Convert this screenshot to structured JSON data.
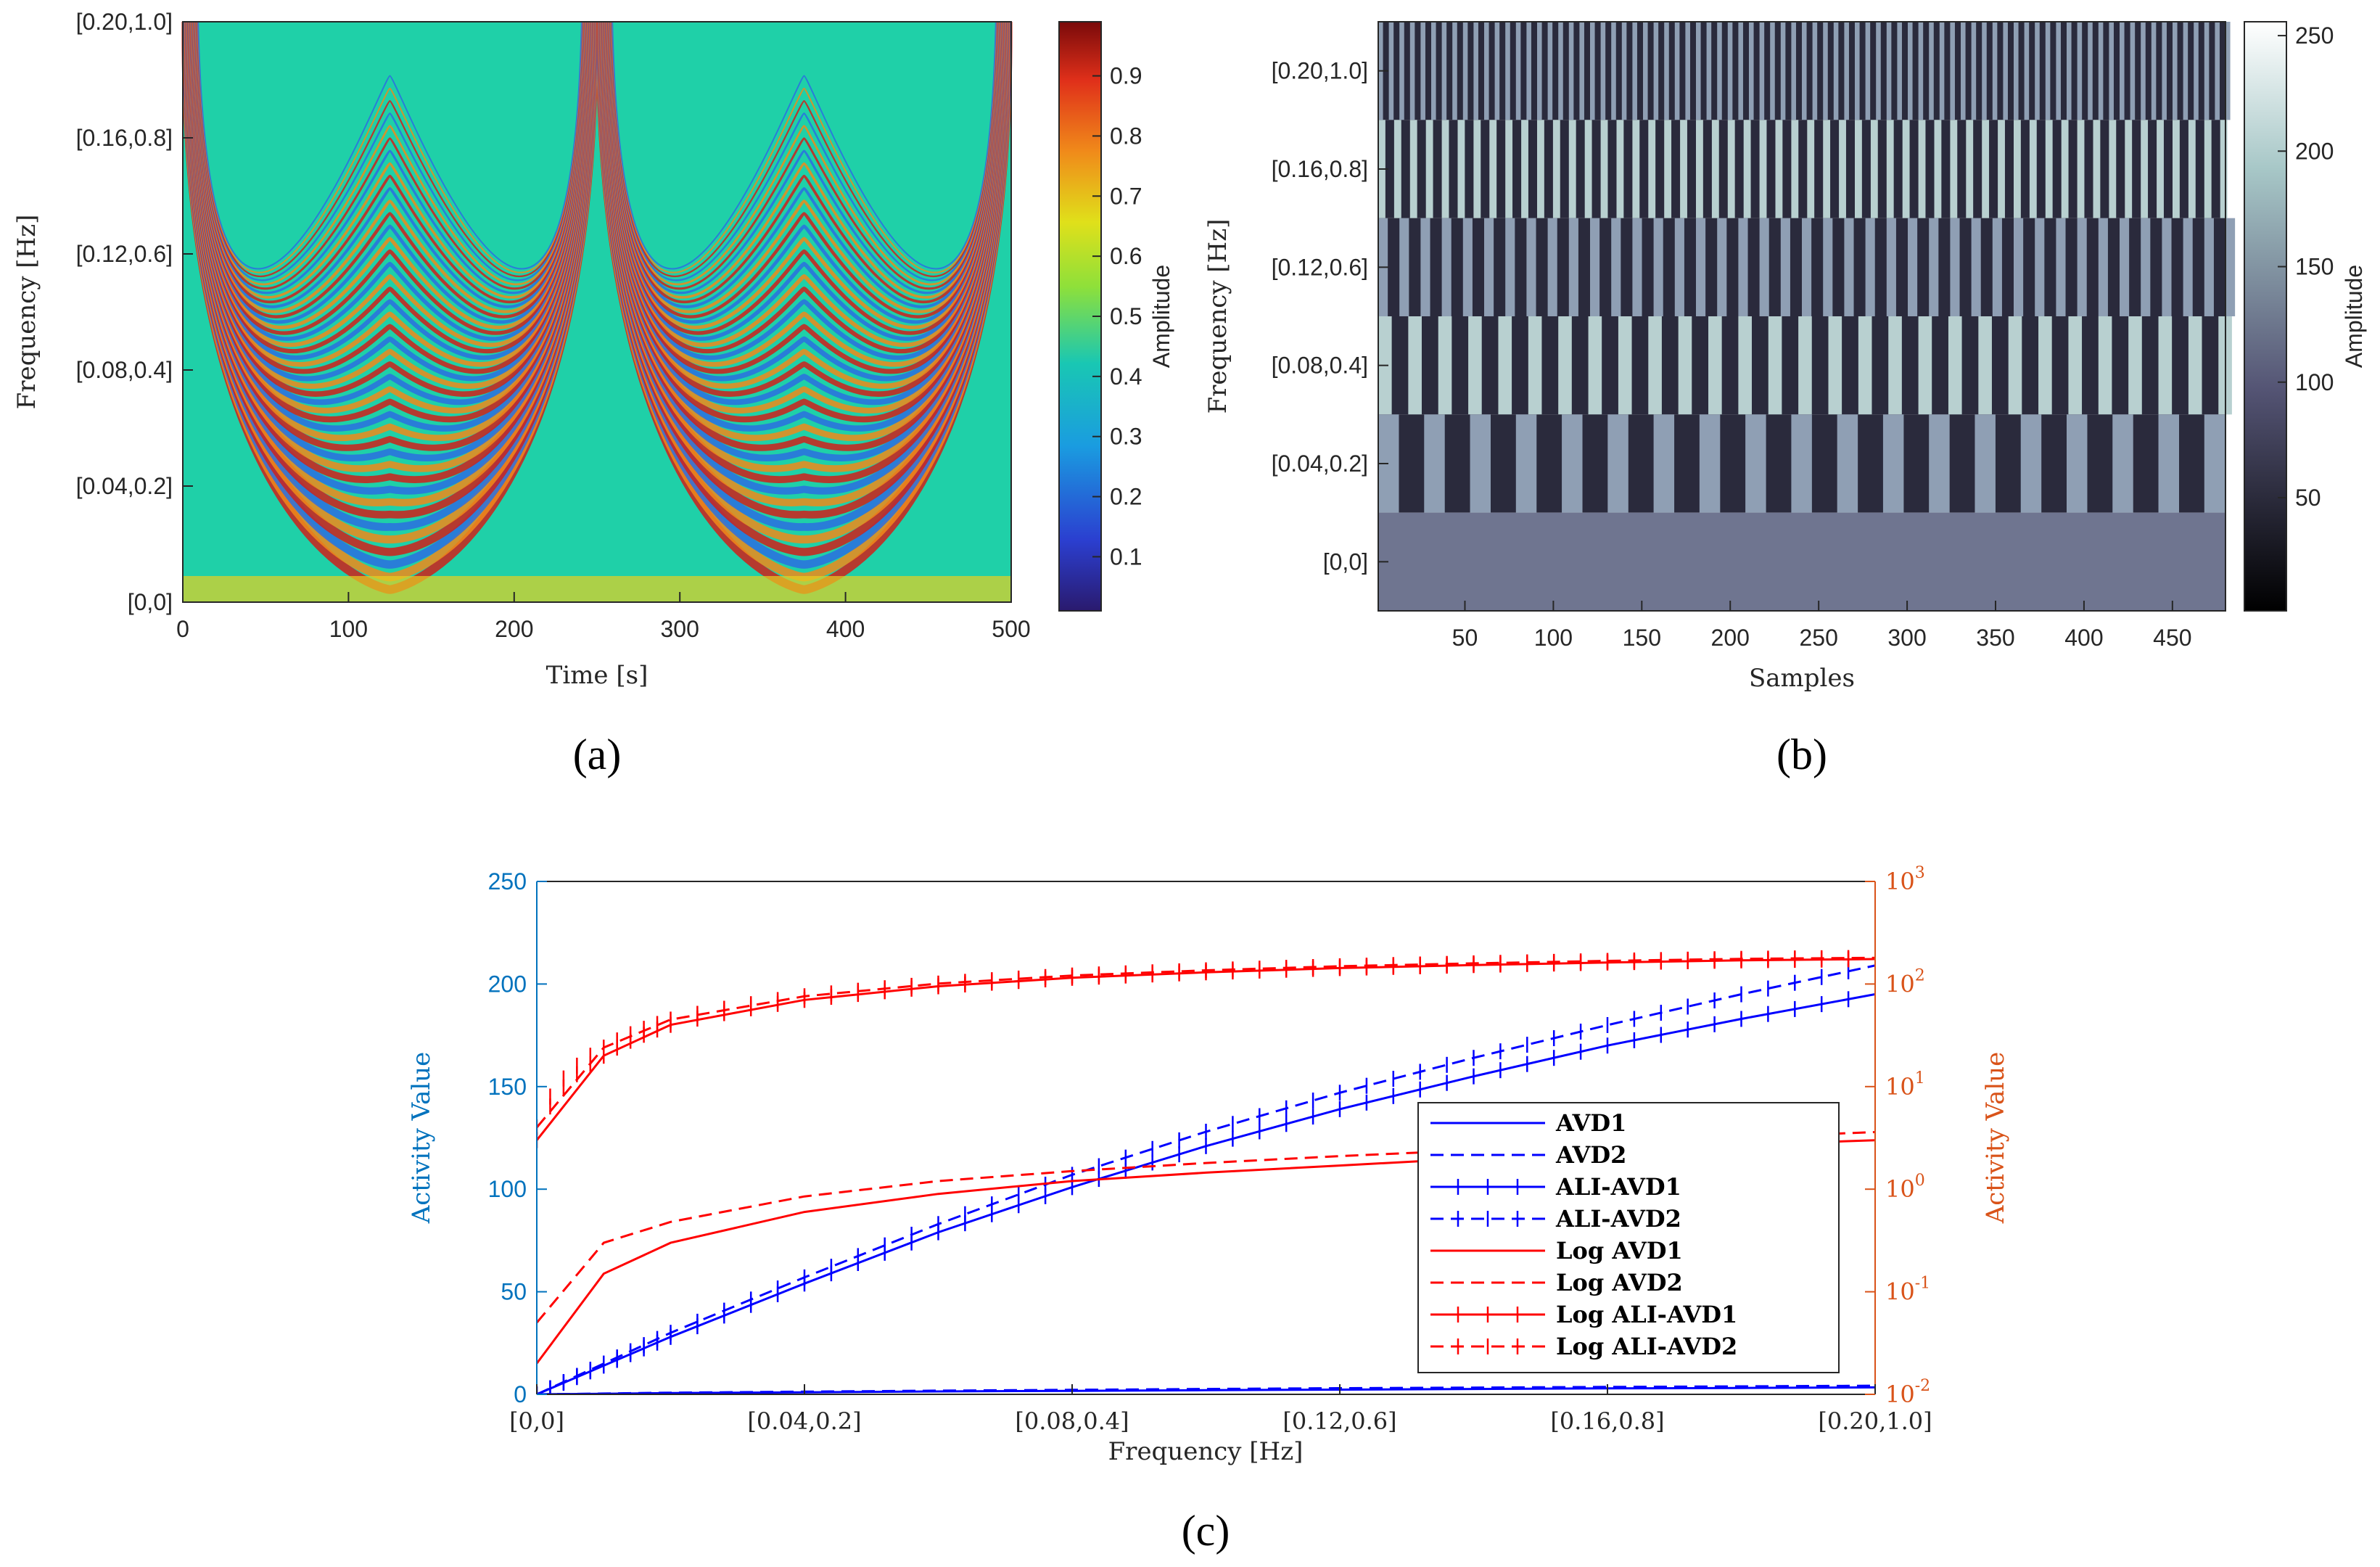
{
  "colors": {
    "blue": "#0000ff",
    "red": "#ff0000",
    "left_axis": "#0072bd",
    "right_axis": "#d95319",
    "axis": "#262626"
  },
  "chart_data": [
    {
      "type": "heatmap",
      "id": "a",
      "caption": "(a)",
      "colormap": "jet",
      "xlabel": "Time [s]",
      "ylabel": "Frequency [Hz]",
      "xlim": [
        0,
        500
      ],
      "xticks": [
        "0",
        "100",
        "200",
        "300",
        "400",
        "500"
      ],
      "yticks": [
        "[0,0]",
        "[0.04,0.2]",
        "[0.08,0.4]",
        "[0.12,0.6]",
        "[0.16,0.8]",
        "[0.20,1.0]"
      ],
      "colorbar": {
        "label": "Amplitude",
        "range": [
          0.01,
          0.99
        ],
        "ticks": [
          "0.1",
          "0.2",
          "0.3",
          "0.4",
          "0.5",
          "0.6",
          "0.7",
          "0.8",
          "0.9"
        ]
      }
    },
    {
      "type": "heatmap",
      "id": "b",
      "caption": "(b)",
      "colormap": "bone",
      "xlabel": "Samples",
      "ylabel": "Frequency [Hz]",
      "xlim": [
        1,
        480
      ],
      "xticks": [
        "50",
        "100",
        "150",
        "200",
        "250",
        "300",
        "350",
        "400",
        "450"
      ],
      "yticks": [
        "[0,0]",
        "[0.04,0.2]",
        "[0.08,0.4]",
        "[0.12,0.6]",
        "[0.16,0.8]",
        "[0.20,1.0]"
      ],
      "colorbar": {
        "label": "Amplitude",
        "range": [
          1,
          256
        ],
        "ticks": [
          "50",
          "100",
          "150",
          "200",
          "250"
        ]
      }
    },
    {
      "type": "line",
      "id": "c",
      "caption": "(c)",
      "xlabel": "Frequency [Hz]",
      "ylabel_left": "Activity Value",
      "ylabel_right": "Activity Value",
      "x": [
        0,
        0.01,
        0.02,
        0.04,
        0.06,
        0.08,
        0.1,
        0.12,
        0.14,
        0.16,
        0.18,
        0.2
      ],
      "xticks": [
        "[0,0]",
        "[0.04,0.2]",
        "[0.08,0.4]",
        "[0.12,0.6]",
        "[0.16,0.8]",
        "[0.20,1.0]"
      ],
      "ylim_left": [
        0,
        250
      ],
      "yticks_left": [
        "0",
        "50",
        "100",
        "150",
        "200",
        "250"
      ],
      "ylim_right": [
        0.01,
        1000
      ],
      "yscale_right": "log",
      "legend_position": "bottom-right",
      "series": [
        {
          "name": "AVD1",
          "axis": "left",
          "color": "blue",
          "dash": "solid",
          "markers": false,
          "values": [
            0,
            0.3,
            0.6,
            1.0,
            1.4,
            1.7,
            2.0,
            2.3,
            2.6,
            2.9,
            3.1,
            3.4
          ]
        },
        {
          "name": "AVD2",
          "axis": "left",
          "color": "blue",
          "dash": "dashed",
          "markers": false,
          "values": [
            0,
            0.4,
            0.8,
            1.3,
            1.8,
            2.2,
            2.6,
            3.0,
            3.3,
            3.6,
            3.9,
            4.2
          ]
        },
        {
          "name": "ALI-AVD1",
          "axis": "left",
          "color": "blue",
          "dash": "solid",
          "markers": true,
          "values": [
            0,
            14,
            28,
            54,
            79,
            101,
            121,
            139,
            155,
            170,
            183,
            195
          ]
        },
        {
          "name": "ALI-AVD2",
          "axis": "left",
          "color": "blue",
          "dash": "dashed",
          "markers": true,
          "values": [
            0,
            15,
            30,
            57,
            83,
            107,
            128,
            147,
            164,
            180,
            195,
            209
          ]
        },
        {
          "name": "Log AVD1",
          "axis": "right",
          "color": "red",
          "dash": "solid",
          "markers": false,
          "values": [
            0.02,
            0.15,
            0.3,
            0.6,
            0.9,
            1.2,
            1.45,
            1.7,
            2.0,
            2.3,
            2.7,
            3.0
          ]
        },
        {
          "name": "Log AVD2",
          "axis": "right",
          "color": "red",
          "dash": "dashed",
          "markers": false,
          "values": [
            0.05,
            0.3,
            0.48,
            0.85,
            1.2,
            1.5,
            1.8,
            2.1,
            2.4,
            2.8,
            3.2,
            3.6
          ]
        },
        {
          "name": "Log ALI-AVD1",
          "axis": "right",
          "color": "red",
          "dash": "solid",
          "markers": true,
          "values": [
            3,
            20,
            40,
            70,
            95,
            115,
            130,
            143,
            153,
            162,
            170,
            175
          ]
        },
        {
          "name": "Log ALI-AVD2",
          "axis": "right",
          "color": "red",
          "dash": "dashed",
          "markers": true,
          "values": [
            4,
            24,
            45,
            76,
            101,
            121,
            136,
            149,
            159,
            168,
            176,
            180
          ]
        }
      ]
    }
  ]
}
